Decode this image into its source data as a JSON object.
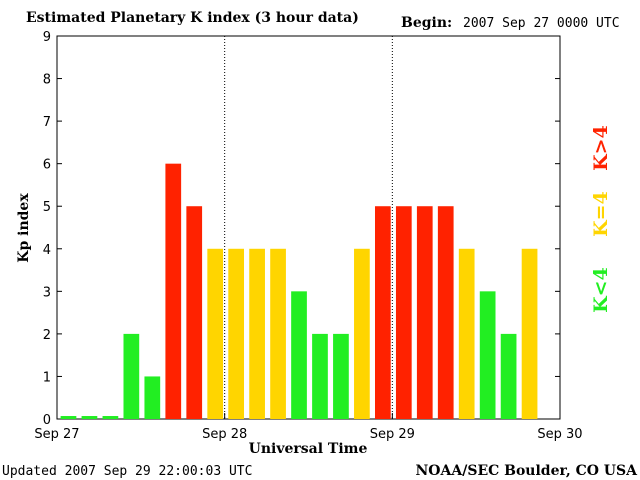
{
  "chart_data": {
    "type": "bar",
    "title": "Estimated Planetary K index (3 hour data)",
    "begin_label": "Begin:",
    "begin_value": "2007 Sep 27 0000 UTC",
    "xlabel": "Universal Time",
    "ylabel": "Kp index",
    "ylim": [
      0,
      9
    ],
    "y_ticks": [
      "0",
      "1",
      "2",
      "3",
      "4",
      "5",
      "6",
      "7",
      "8",
      "9"
    ],
    "x_ticks": [
      "Sep 27",
      "Sep 28",
      "Sep 29",
      "Sep 30"
    ],
    "bin_hours": 3,
    "values": [
      0.07,
      0.07,
      0.07,
      2,
      1,
      6,
      5,
      4,
      4,
      4,
      4,
      3,
      2,
      2,
      4,
      5,
      5,
      5,
      5,
      4,
      3,
      2,
      4
    ],
    "legend": [
      {
        "label": "K<4",
        "color": "#22ee22"
      },
      {
        "label": "K=4",
        "color": "#ffd500"
      },
      {
        "label": "K>4",
        "color": "#ff2200"
      }
    ],
    "grid": "vertical dotted lines at day boundaries"
  },
  "footer": {
    "updated": "Updated 2007 Sep 29 22:00:03 UTC",
    "source": "NOAA/SEC Boulder, CO USA"
  }
}
